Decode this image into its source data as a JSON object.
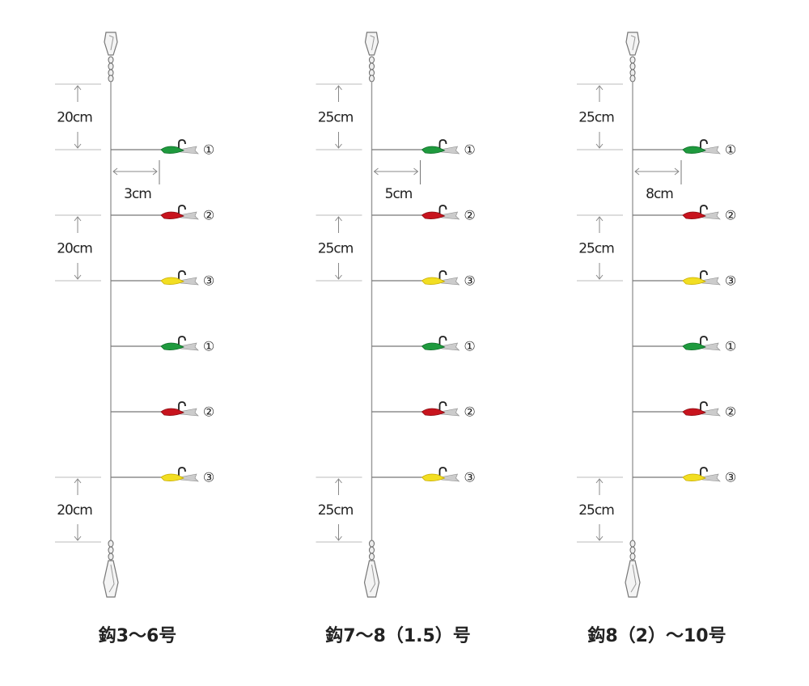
{
  "rigs": [
    {
      "top_spacing": "20cm",
      "branch_length": "3cm",
      "middle_spacing": "20cm",
      "bottom_spacing": "20cm",
      "hooks": [
        "①",
        "②",
        "③",
        "①",
        "②",
        "③"
      ],
      "caption": "鈎3〜6号"
    },
    {
      "top_spacing": "25cm",
      "branch_length": "5cm",
      "middle_spacing": "25cm",
      "bottom_spacing": "25cm",
      "hooks": [
        "①",
        "②",
        "③",
        "①",
        "②",
        "③"
      ],
      "caption": "鈎7〜8（1.5）号"
    },
    {
      "top_spacing": "25cm",
      "branch_length": "8cm",
      "middle_spacing": "25cm",
      "bottom_spacing": "25cm",
      "hooks": [
        "①",
        "②",
        "③",
        "①",
        "②",
        "③"
      ],
      "caption": "鈎8（2）〜10号"
    }
  ]
}
